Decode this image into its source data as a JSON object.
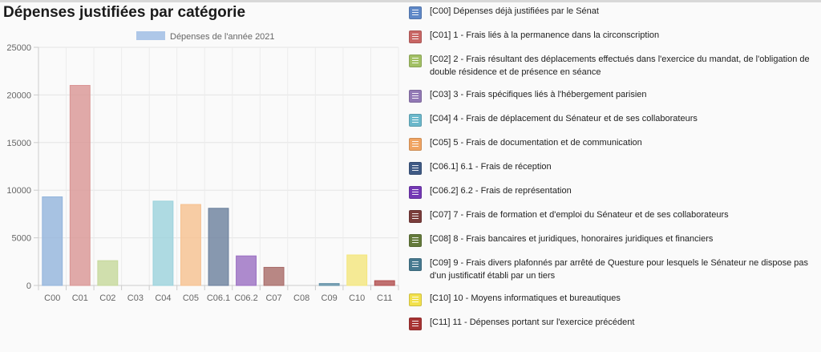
{
  "chart_data": {
    "type": "bar",
    "title": "Dépenses justifiées par catégorie",
    "series_name": "Dépenses de l'année 2021",
    "series_color": "#aec7e8",
    "categories": [
      "C00",
      "C01",
      "C02",
      "C03",
      "C04",
      "C05",
      "C06.1",
      "C06.2",
      "C07",
      "C08",
      "C09",
      "C10",
      "C11"
    ],
    "values": [
      9300,
      21000,
      2600,
      0,
      8850,
      8500,
      8100,
      3100,
      1900,
      0,
      200,
      3200,
      500
    ],
    "colors": [
      "#92b4dc",
      "#d99594",
      "#c5d89a",
      "#b4a2cc",
      "#9bd2dc",
      "#f6c08e",
      "#6a7f9c",
      "#9a6ec2",
      "#a76a67",
      "#7e9556",
      "#5f8fa5",
      "#f4e67c",
      "#b14d4d"
    ],
    "ylim": [
      0,
      25000
    ],
    "yticks": [
      0,
      5000,
      10000,
      15000,
      20000,
      25000
    ],
    "grid": true
  },
  "legend": [
    {
      "label": "[C00] Dépenses déjà justifiées par le Sénat",
      "color": "#5f88c7"
    },
    {
      "label": "[C01] 1 - Frais liés à la permanence dans la circonscription",
      "color": "#c86664"
    },
    {
      "label": "[C02] 2 - Frais résultant des déplacements effectués dans l'exercice du mandat, de l'obligation de double résidence et de présence en séance",
      "color": "#a2c064"
    },
    {
      "label": "[C03] 3 - Frais spécifiques liés à l'hébergement parisien",
      "color": "#9279b5"
    },
    {
      "label": "[C04] 4 - Frais de déplacement du Sénateur et de ses collaborateurs",
      "color": "#6bb8cb"
    },
    {
      "label": "[C05] 5 - Frais de documentation et de communication",
      "color": "#f0a462"
    },
    {
      "label": "[C06.1] 6.1 - Frais de réception",
      "color": "#3f5a85"
    },
    {
      "label": "[C06.2] 6.2 - Frais de représentation",
      "color": "#7438b5"
    },
    {
      "label": "[C07] 7 - Frais de formation et d'emploi du Sénateur et de ses collaborateurs",
      "color": "#7a3d3b"
    },
    {
      "label": "[C08] 8 - Frais bancaires et juridiques, honoraires juridiques et financiers",
      "color": "#647a3b"
    },
    {
      "label": "[C09] 9 - Frais divers plafonnés par arrêté de Questure pour lesquels le Sénateur ne dispose pas d'un justificatif établi par un tiers",
      "color": "#467990"
    },
    {
      "label": "[C10] 10 - Moyens informatiques et bureautiques",
      "color": "#f2e14c"
    },
    {
      "label": "[C11] 11 - Dépenses portant sur l'exercice précédent",
      "color": "#a73333"
    }
  ]
}
